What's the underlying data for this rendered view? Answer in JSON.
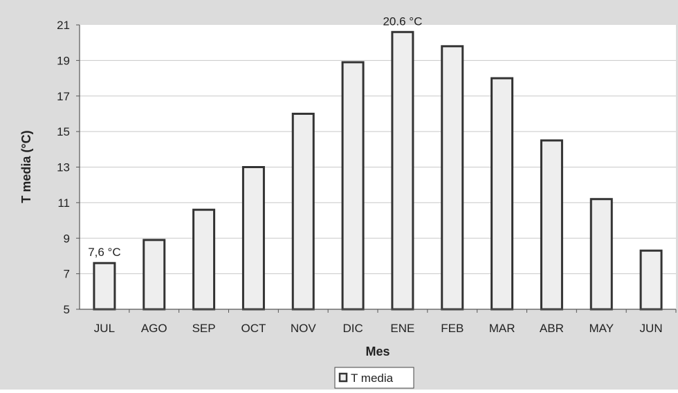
{
  "chart_data": {
    "type": "bar",
    "title": "",
    "xlabel": "Mes",
    "ylabel": "T media (°C)",
    "categories": [
      "JUL",
      "AGO",
      "SEP",
      "OCT",
      "NOV",
      "DIC",
      "ENE",
      "FEB",
      "MAR",
      "ABR",
      "MAY",
      "JUN"
    ],
    "series": [
      {
        "name": "T media",
        "values": [
          7.6,
          8.9,
          10.6,
          13.0,
          16.0,
          18.9,
          20.6,
          19.8,
          18.0,
          14.5,
          11.2,
          8.3
        ]
      }
    ],
    "ylim": [
      5,
      21
    ],
    "yticks": [
      "5",
      "7",
      "9",
      "11",
      "13",
      "15",
      "17",
      "19",
      "21"
    ],
    "annotations": [
      {
        "category": "JUL",
        "text": "7,6 °C"
      },
      {
        "category": "ENE",
        "text": "20.6 °C"
      }
    ],
    "grid": true,
    "legend": "bottom-center",
    "colors": {
      "bar_fill": "#eeeeee",
      "bar_stroke": "#333333",
      "panel": "#dcdcdc",
      "plot_bg": "#ffffff",
      "grid": "#c8c8c8"
    }
  }
}
